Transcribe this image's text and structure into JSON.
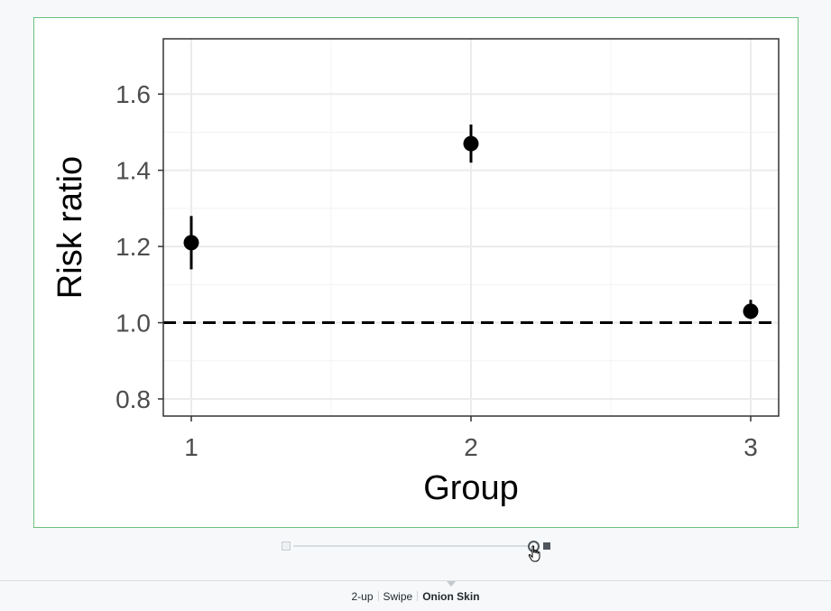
{
  "chart_data": {
    "type": "scatter",
    "xlabel": "Group",
    "ylabel": "Risk ratio",
    "categories": [
      "1",
      "2",
      "3"
    ],
    "x": [
      1,
      2,
      3
    ],
    "y": [
      1.21,
      1.47,
      1.03
    ],
    "ci_low": [
      1.14,
      1.42,
      1.01
    ],
    "ci_high": [
      1.28,
      1.52,
      1.06
    ],
    "yticks": [
      "0.8",
      "1.0",
      "1.2",
      "1.4",
      "1.6"
    ],
    "ytick_values": [
      0.8,
      1.0,
      1.2,
      1.4,
      1.6
    ],
    "ylim": [
      0.755,
      1.745
    ],
    "xlim": [
      0.9,
      3.1
    ],
    "reference_line": 1.0,
    "reference_style": "dashed",
    "grid": true
  },
  "diff_view": {
    "slider_value": 0.98,
    "modes": [
      "2-up",
      "Swipe",
      "Onion Skin"
    ],
    "active_mode": "Onion Skin"
  },
  "colors": {
    "frame_border": "#6cc07a",
    "point": "#000000",
    "grid": "#ebebeb"
  }
}
